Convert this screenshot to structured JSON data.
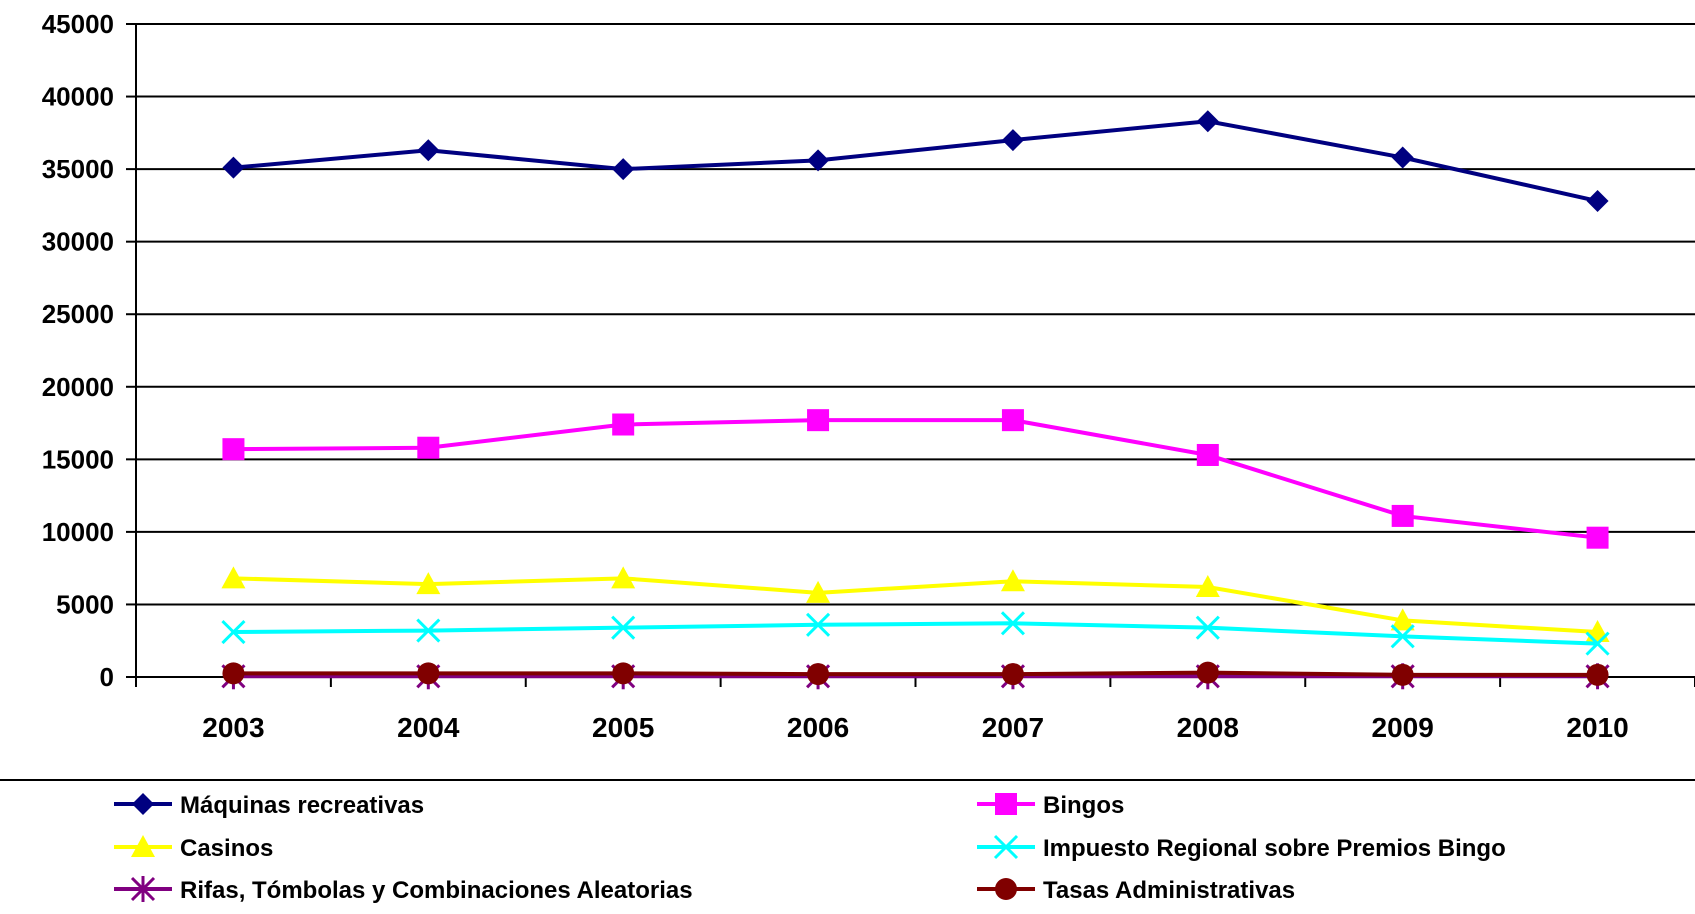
{
  "chart_data": {
    "type": "line",
    "categories": [
      "2003",
      "2004",
      "2005",
      "2006",
      "2007",
      "2008",
      "2009",
      "2010"
    ],
    "ylim": [
      0,
      45000
    ],
    "yticks": [
      "0",
      "5000",
      "10000",
      "15000",
      "20000",
      "25000",
      "30000",
      "35000",
      "40000",
      "45000"
    ],
    "grid": "horizontal",
    "legend_position": "bottom",
    "series": [
      {
        "name": "Máquinas recreativas",
        "color": "#000080",
        "marker": "diamond",
        "values": [
          35100,
          36300,
          35000,
          35600,
          37000,
          38300,
          35800,
          32800
        ]
      },
      {
        "name": "Bingos",
        "color": "#FF00FF",
        "marker": "square",
        "values": [
          15700,
          15800,
          17400,
          17700,
          17700,
          15300,
          11100,
          9600
        ]
      },
      {
        "name": "Casinos",
        "color": "#FFFF00",
        "marker": "triangle",
        "values": [
          6800,
          6400,
          6800,
          5800,
          6600,
          6200,
          3900,
          3100
        ]
      },
      {
        "name": "Impuesto Regional sobre Premios Bingo",
        "color": "#00FFFF",
        "marker": "x",
        "values": [
          3100,
          3200,
          3400,
          3600,
          3700,
          3400,
          2800,
          2300
        ]
      },
      {
        "name": "Rifas, Tómbolas y Combinaciones Aleatorias",
        "color": "#800080",
        "marker": "asterisk",
        "values": [
          50,
          50,
          50,
          50,
          50,
          50,
          50,
          50
        ]
      },
      {
        "name": "Tasas Administrativas",
        "color": "#800000",
        "marker": "circle",
        "values": [
          250,
          250,
          250,
          200,
          200,
          300,
          150,
          150
        ]
      }
    ]
  }
}
